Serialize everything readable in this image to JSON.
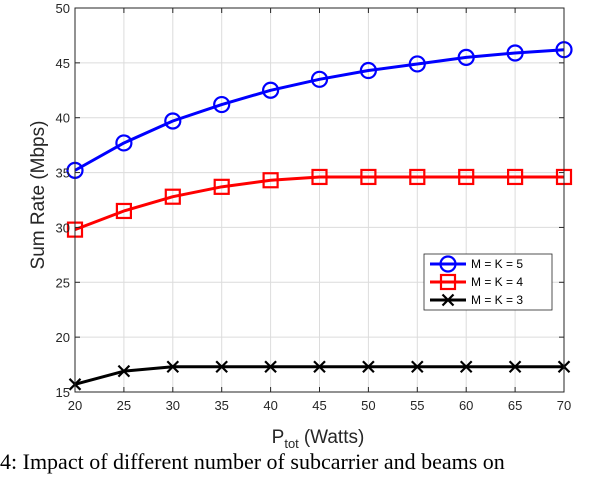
{
  "chart_data": {
    "type": "line",
    "x": [
      20,
      25,
      30,
      35,
      40,
      45,
      50,
      55,
      60,
      65,
      70
    ],
    "xlabel": "P",
    "xlabel_sub": "tot",
    "xlabel_unit": "(Watts)",
    "ylabel": "Sum Rate (Mbps)",
    "xlim": [
      20,
      70
    ],
    "ylim": [
      15,
      50
    ],
    "xticks": [
      "20",
      "25",
      "30",
      "35",
      "40",
      "45",
      "50",
      "55",
      "60",
      "65",
      "70"
    ],
    "yticks": [
      "15",
      "20",
      "25",
      "30",
      "35",
      "40",
      "45",
      "50"
    ],
    "grid": true,
    "legend_position": "lower-right",
    "series": [
      {
        "name": "M = K = 5",
        "color": "#0000ff",
        "marker": "circle",
        "values": [
          35.2,
          37.7,
          39.7,
          41.2,
          42.5,
          43.5,
          44.3,
          44.9,
          45.5,
          45.9,
          46.2
        ]
      },
      {
        "name": "M = K = 4",
        "color": "#ff0000",
        "marker": "square",
        "values": [
          29.8,
          31.5,
          32.8,
          33.7,
          34.3,
          34.6,
          34.6,
          34.6,
          34.6,
          34.6,
          34.6
        ]
      },
      {
        "name": "M = K = 3",
        "color": "#000000",
        "marker": "x",
        "values": [
          15.7,
          16.9,
          17.3,
          17.3,
          17.3,
          17.3,
          17.3,
          17.3,
          17.3,
          17.3,
          17.3
        ]
      }
    ]
  },
  "caption": "4: Impact of different number of subcarrier and beams on"
}
